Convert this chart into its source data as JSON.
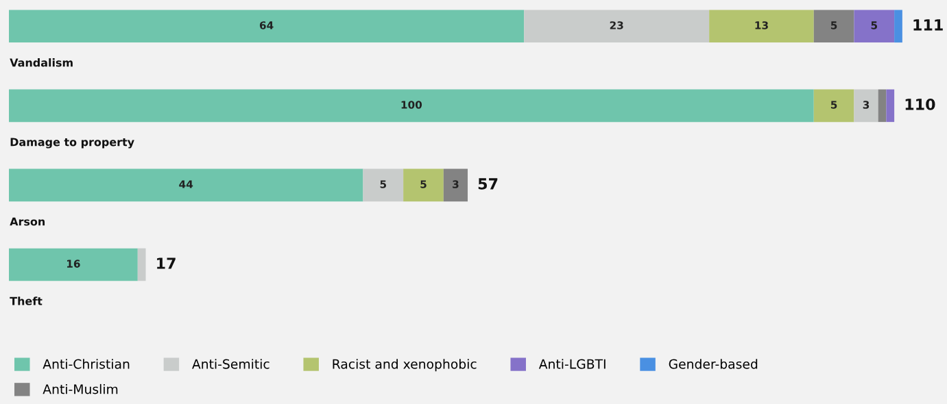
{
  "chart_data": {
    "type": "bar",
    "orientation": "horizontal",
    "stacked": true,
    "legend": "bottom",
    "categories": [
      "Vandalism",
      "Damage to property",
      "Arson",
      "Theft"
    ],
    "series": [
      {
        "name": "Anti-Christian",
        "color": "#6fc5ac",
        "values": [
          64,
          100,
          44,
          16
        ],
        "value_labels": [
          "64",
          "100",
          "44",
          "16"
        ]
      },
      {
        "name": "Anti-Muslim",
        "color": "#838383",
        "values": [
          5,
          1,
          3,
          null
        ],
        "value_labels": [
          "5",
          null,
          "3",
          null
        ]
      },
      {
        "name": "Anti-Semitic",
        "color": "#c9cccb",
        "values": [
          23,
          3,
          5,
          1
        ],
        "value_labels": [
          "23",
          "3",
          "5",
          null
        ]
      },
      {
        "name": "Racist and xenophobic",
        "color": "#b4c46f",
        "values": [
          13,
          5,
          5,
          null
        ],
        "value_labels": [
          "13",
          "5",
          "5",
          null
        ]
      },
      {
        "name": "Anti-LGBTI",
        "color": "#8572c9",
        "values": [
          5,
          1,
          null,
          null
        ],
        "value_labels": [
          "5",
          null,
          null,
          null
        ]
      },
      {
        "name": "Gender-based",
        "color": "#4a90e2",
        "values": [
          1,
          null,
          null,
          null
        ],
        "value_labels": [
          null,
          null,
          null,
          null
        ]
      }
    ],
    "totals": [
      "111",
      "110",
      "57",
      "17"
    ]
  }
}
